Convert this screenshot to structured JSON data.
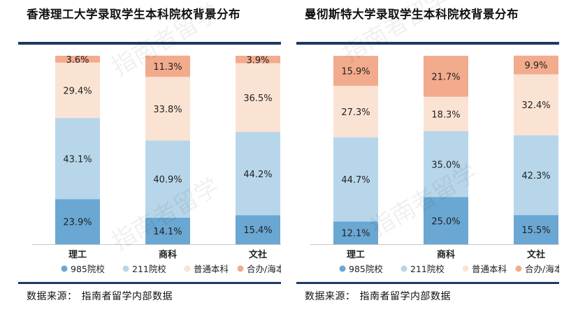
{
  "source": {
    "label": "数据来源：",
    "text": "指南者留学内部数据"
  },
  "watermark_text": "指南者留学",
  "colors": {
    "985院校": "#6aa7d3",
    "211院校": "#b7d6ea",
    "普通本科": "#fbe3d4",
    "合办/海本": "#f2ab8c"
  },
  "chart_data": [
    {
      "type": "bar",
      "stacked": "percent",
      "title": "香港理工大学录取学生本科院校背景分布",
      "categories": [
        "理工",
        "商科",
        "文社"
      ],
      "series": [
        {
          "name": "985院校",
          "values": [
            23.9,
            14.1,
            15.4
          ]
        },
        {
          "name": "211院校",
          "values": [
            43.1,
            40.9,
            44.2
          ]
        },
        {
          "name": "普通本科",
          "values": [
            29.4,
            33.8,
            36.5
          ]
        },
        {
          "name": "合办/海本",
          "values": [
            3.6,
            11.3,
            3.9
          ]
        }
      ],
      "legend": "bottom",
      "grid": false,
      "ylim": [
        0,
        100
      ]
    },
    {
      "type": "bar",
      "stacked": "percent",
      "title": "曼彻斯特大学录取学生本科院校背景分布",
      "categories": [
        "理工",
        "商科",
        "文社"
      ],
      "series": [
        {
          "name": "985院校",
          "values": [
            12.1,
            25.0,
            15.5
          ]
        },
        {
          "name": "211院校",
          "values": [
            44.7,
            35.0,
            42.3
          ]
        },
        {
          "name": "普通本科",
          "values": [
            27.3,
            18.3,
            32.4
          ]
        },
        {
          "name": "合办/海本",
          "values": [
            15.9,
            21.7,
            9.9
          ]
        }
      ],
      "legend": "bottom",
      "grid": false,
      "ylim": [
        0,
        100
      ]
    }
  ]
}
